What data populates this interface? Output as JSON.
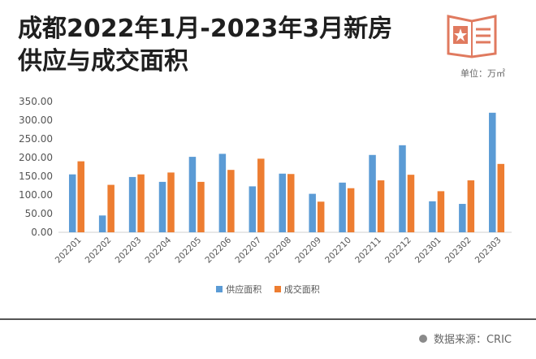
{
  "header": {
    "title": "成都2022年1月-2023年3月新房供应与成交面积",
    "unit": "单位：万㎡"
  },
  "footer": {
    "source": "数据来源：CRIC"
  },
  "colors": {
    "supply": "#5b9bd5",
    "deal": "#ed7d31",
    "badge": "#e07a5f"
  },
  "chart_data": {
    "type": "bar",
    "categories": [
      "202201",
      "202202",
      "202203",
      "202204",
      "202205",
      "202206",
      "202207",
      "202208",
      "202209",
      "202210",
      "202211",
      "202212",
      "202301",
      "202302",
      "202303"
    ],
    "series": [
      {
        "name": "供应面积",
        "values": [
          155,
          45,
          148,
          135,
          202,
          210,
          123,
          157,
          103,
          133,
          207,
          233,
          83,
          76,
          320
        ]
      },
      {
        "name": "成交面积",
        "values": [
          190,
          127,
          155,
          160,
          135,
          167,
          197,
          156,
          82,
          118,
          139,
          154,
          110,
          139,
          183
        ]
      }
    ],
    "y_ticks": [
      "0.00",
      "50.00",
      "100.00",
      "150.00",
      "200.00",
      "250.00",
      "300.00",
      "350.00"
    ],
    "ylim": [
      0,
      350
    ],
    "grid": false,
    "legend_position": "bottom"
  }
}
